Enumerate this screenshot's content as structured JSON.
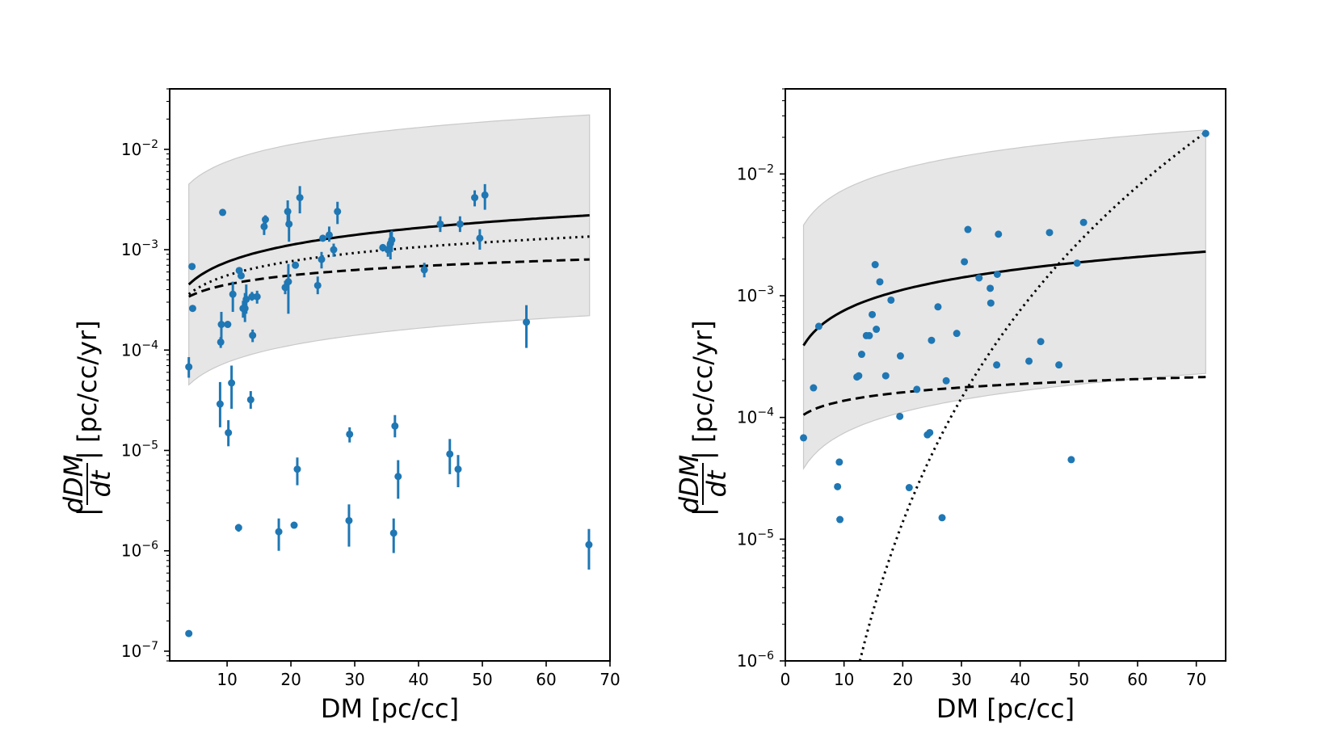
{
  "chart_data": [
    {
      "type": "scatter",
      "xlabel": "DM [pc/cc]",
      "ylabel": {
        "prefix": "|",
        "numerator": "dDM",
        "denominator": "dt",
        "suffix": "| [pc/cc/yr]"
      },
      "yscale": "log",
      "xlim": [
        1,
        70
      ],
      "ylim": [
        8e-08,
        0.04
      ],
      "xticks": [
        10,
        20,
        30,
        40,
        50,
        60,
        70
      ],
      "yticks": [
        {
          "value": 1e-07,
          "exp": "−7"
        },
        {
          "value": 1e-06,
          "exp": "−6"
        },
        {
          "value": 1e-05,
          "exp": "−5"
        },
        {
          "value": 0.0001,
          "exp": "−4"
        },
        {
          "value": 0.001,
          "exp": "−3"
        },
        {
          "value": 0.01,
          "exp": "−2"
        }
      ],
      "colors": {
        "points": "#1f77b4",
        "band_fill": "#e6e6e6",
        "band_edge": "#c9c9c9",
        "lines": "#000000"
      },
      "band": {
        "x": [
          4.0,
          66.8
        ],
        "lower": [
          4.5e-05,
          0.00022
        ],
        "upper": [
          0.0045,
          0.022
        ]
      },
      "curves": [
        {
          "style": "solid",
          "x": [
            4.0,
            66.8
          ],
          "y": [
            0.00045,
            0.0022
          ]
        },
        {
          "style": "dotted",
          "x": [
            4.0,
            66.8
          ],
          "y": [
            0.00036,
            0.00135
          ]
        },
        {
          "style": "dashed",
          "x": [
            4.0,
            66.8
          ],
          "y": [
            0.00034,
            0.0008
          ]
        }
      ],
      "points": [
        {
          "x": 4.0,
          "y": 6.8e-05,
          "lo": 5.3e-05,
          "hi": 8.5e-05
        },
        {
          "x": 4.0,
          "y": 1.5e-07
        },
        {
          "x": 4.5,
          "y": 0.00068
        },
        {
          "x": 4.6,
          "y": 0.00026
        },
        {
          "x": 8.9,
          "y": 2.9e-05,
          "lo": 1.7e-05,
          "hi": 4.8e-05
        },
        {
          "x": 9.0,
          "y": 0.00012,
          "lo": 0.000105,
          "hi": 0.000135
        },
        {
          "x": 9.1,
          "y": 0.00018,
          "lo": 0.00012,
          "hi": 0.00024
        },
        {
          "x": 9.3,
          "y": 0.00235
        },
        {
          "x": 10.1,
          "y": 0.00018
        },
        {
          "x": 10.2,
          "y": 1.5e-05,
          "lo": 1.1e-05,
          "hi": 2e-05
        },
        {
          "x": 10.7,
          "y": 4.7e-05,
          "lo": 2.6e-05,
          "hi": 7e-05
        },
        {
          "x": 10.9,
          "y": 0.00036,
          "lo": 0.00024,
          "hi": 0.00048
        },
        {
          "x": 11.8,
          "y": 1.7e-06,
          "lo": 1.55e-06,
          "hi": 1.85e-06
        },
        {
          "x": 11.9,
          "y": 0.00062,
          "lo": 0.00058,
          "hi": 0.00066
        },
        {
          "x": 12.2,
          "y": 0.00055
        },
        {
          "x": 12.5,
          "y": 0.00026,
          "lo": 0.00021,
          "hi": 0.00031
        },
        {
          "x": 12.8,
          "y": 0.00026,
          "lo": 0.00019,
          "hi": 0.00037
        },
        {
          "x": 13.0,
          "y": 0.00032,
          "lo": 0.00023,
          "hi": 0.00045
        },
        {
          "x": 13.7,
          "y": 3.2e-05,
          "lo": 2.6e-05,
          "hi": 3.9e-05
        },
        {
          "x": 13.9,
          "y": 0.00034,
          "lo": 0.00031,
          "hi": 0.00038
        },
        {
          "x": 14.0,
          "y": 0.00014,
          "lo": 0.00012,
          "hi": 0.00016
        },
        {
          "x": 14.7,
          "y": 0.00034,
          "lo": 0.00029,
          "hi": 0.00039
        },
        {
          "x": 15.8,
          "y": 0.0017,
          "lo": 0.0014,
          "hi": 0.002
        },
        {
          "x": 16.0,
          "y": 0.002,
          "lo": 0.0018,
          "hi": 0.0022
        },
        {
          "x": 18.1,
          "y": 1.55e-06,
          "lo": 1e-06,
          "hi": 2.1e-06
        },
        {
          "x": 19.1,
          "y": 0.00042,
          "lo": 0.00036,
          "hi": 0.00049
        },
        {
          "x": 19.5,
          "y": 0.0024,
          "lo": 0.0018,
          "hi": 0.0031
        },
        {
          "x": 19.6,
          "y": 0.00048,
          "lo": 0.00023,
          "hi": 0.00072
        },
        {
          "x": 19.7,
          "y": 0.0018,
          "lo": 0.0012,
          "hi": 0.0024
        },
        {
          "x": 20.5,
          "y": 1.8e-06,
          "lo": 1.7e-06,
          "hi": 1.9e-06
        },
        {
          "x": 20.7,
          "y": 0.0007,
          "lo": 0.00065,
          "hi": 0.00075
        },
        {
          "x": 21.0,
          "y": 6.5e-06,
          "lo": 4.5e-06,
          "hi": 8.5e-06
        },
        {
          "x": 21.4,
          "y": 0.0033,
          "lo": 0.0023,
          "hi": 0.0043
        },
        {
          "x": 24.2,
          "y": 0.00044,
          "lo": 0.00036,
          "hi": 0.00054
        },
        {
          "x": 24.8,
          "y": 0.0008,
          "lo": 0.00065,
          "hi": 0.00095
        },
        {
          "x": 25.0,
          "y": 0.0013
        },
        {
          "x": 26.0,
          "y": 0.0014,
          "lo": 0.0012,
          "hi": 0.0017
        },
        {
          "x": 26.7,
          "y": 0.001,
          "lo": 0.00085,
          "hi": 0.00115
        },
        {
          "x": 27.3,
          "y": 0.0024,
          "lo": 0.0018,
          "hi": 0.003
        },
        {
          "x": 29.1,
          "y": 2e-06,
          "lo": 1.1e-06,
          "hi": 2.9e-06
        },
        {
          "x": 29.2,
          "y": 1.45e-05,
          "lo": 1.2e-05,
          "hi": 1.7e-05
        },
        {
          "x": 34.4,
          "y": 0.00105
        },
        {
          "x": 35.2,
          "y": 0.001,
          "lo": 0.00085,
          "hi": 0.00115
        },
        {
          "x": 35.6,
          "y": 0.00115,
          "lo": 0.0008,
          "hi": 0.0015
        },
        {
          "x": 35.8,
          "y": 0.00125,
          "lo": 0.00095,
          "hi": 0.00155
        },
        {
          "x": 36.1,
          "y": 1.5e-06,
          "lo": 9.5e-07,
          "hi": 2.1e-06
        },
        {
          "x": 36.3,
          "y": 1.75e-05,
          "lo": 1.35e-05,
          "hi": 2.25e-05
        },
        {
          "x": 36.8,
          "y": 5.5e-06,
          "lo": 3.3e-06,
          "hi": 8e-06
        },
        {
          "x": 40.9,
          "y": 0.00063,
          "lo": 0.00053,
          "hi": 0.00074
        },
        {
          "x": 43.4,
          "y": 0.0018,
          "lo": 0.0015,
          "hi": 0.00215
        },
        {
          "x": 44.9,
          "y": 9.2e-06,
          "lo": 5.8e-06,
          "hi": 1.3e-05
        },
        {
          "x": 46.2,
          "y": 6.5e-06,
          "lo": 4.3e-06,
          "hi": 9e-06
        },
        {
          "x": 46.5,
          "y": 0.0018,
          "lo": 0.0015,
          "hi": 0.00215
        },
        {
          "x": 48.8,
          "y": 0.0033,
          "lo": 0.0027,
          "hi": 0.0039
        },
        {
          "x": 49.6,
          "y": 0.0013,
          "lo": 0.001,
          "hi": 0.0016
        },
        {
          "x": 50.4,
          "y": 0.0035,
          "lo": 0.0025,
          "hi": 0.0045
        },
        {
          "x": 56.9,
          "y": 0.00019,
          "lo": 0.000105,
          "hi": 0.00028
        },
        {
          "x": 66.7,
          "y": 1.15e-06,
          "lo": 6.5e-07,
          "hi": 1.65e-06
        }
      ]
    },
    {
      "type": "scatter",
      "xlabel": "DM [pc/cc]",
      "ylabel": {
        "prefix": "|",
        "numerator": "dDM",
        "denominator": "dt",
        "suffix": "| [pc/cc/yr]"
      },
      "yscale": "log",
      "xlim": [
        0,
        75
      ],
      "ylim": [
        1e-06,
        0.05
      ],
      "xticks": [
        0,
        10,
        20,
        30,
        40,
        50,
        60,
        70
      ],
      "yticks": [
        {
          "value": 1e-06,
          "exp": "−6"
        },
        {
          "value": 1e-05,
          "exp": "−5"
        },
        {
          "value": 0.0001,
          "exp": "−4"
        },
        {
          "value": 0.001,
          "exp": "−3"
        },
        {
          "value": 0.01,
          "exp": "−2"
        }
      ],
      "colors": {
        "points": "#1f77b4",
        "band_fill": "#e6e6e6",
        "band_edge": "#c9c9c9",
        "lines": "#000000"
      },
      "band": {
        "x": [
          3.1,
          71.6
        ],
        "lower": [
          3.8e-05,
          0.00023
        ],
        "upper": [
          0.0038,
          0.023
        ]
      },
      "curves": [
        {
          "style": "solid",
          "x": [
            3.1,
            71.6
          ],
          "y": [
            0.00039,
            0.0023
          ]
        },
        {
          "style": "dashed",
          "x": [
            3.1,
            71.6
          ],
          "y": [
            0.000105,
            0.000215
          ]
        },
        {
          "style": "dotted",
          "x": [
            12.7,
            71.6
          ],
          "y": [
            1e-06,
            0.022
          ]
        }
      ],
      "points": [
        {
          "x": 3.1,
          "y": 6.8e-05
        },
        {
          "x": 4.8,
          "y": 0.000175
        },
        {
          "x": 5.7,
          "y": 0.00056
        },
        {
          "x": 8.9,
          "y": 2.7e-05
        },
        {
          "x": 9.2,
          "y": 4.3e-05
        },
        {
          "x": 9.3,
          "y": 1.45e-05
        },
        {
          "x": 12.2,
          "y": 0.000215
        },
        {
          "x": 12.5,
          "y": 0.00022
        },
        {
          "x": 13.0,
          "y": 0.00033
        },
        {
          "x": 13.8,
          "y": 0.00047
        },
        {
          "x": 14.3,
          "y": 0.00047
        },
        {
          "x": 14.8,
          "y": 0.0007
        },
        {
          "x": 15.3,
          "y": 0.0018
        },
        {
          "x": 15.5,
          "y": 0.00053
        },
        {
          "x": 16.1,
          "y": 0.0013
        },
        {
          "x": 17.1,
          "y": 0.00022
        },
        {
          "x": 18.0,
          "y": 0.00092
        },
        {
          "x": 19.5,
          "y": 0.000102
        },
        {
          "x": 19.6,
          "y": 0.00032
        },
        {
          "x": 21.1,
          "y": 2.65e-05
        },
        {
          "x": 22.4,
          "y": 0.00017
        },
        {
          "x": 24.2,
          "y": 7.2e-05
        },
        {
          "x": 24.6,
          "y": 7.5e-05
        },
        {
          "x": 24.9,
          "y": 0.00043
        },
        {
          "x": 26.0,
          "y": 0.00081
        },
        {
          "x": 26.7,
          "y": 1.5e-05
        },
        {
          "x": 27.4,
          "y": 0.0002
        },
        {
          "x": 29.2,
          "y": 0.00049
        },
        {
          "x": 30.5,
          "y": 0.0019
        },
        {
          "x": 31.1,
          "y": 0.0035
        },
        {
          "x": 33.0,
          "y": 0.0014
        },
        {
          "x": 34.9,
          "y": 0.00115
        },
        {
          "x": 35.0,
          "y": 0.00087
        },
        {
          "x": 36.0,
          "y": 0.00027
        },
        {
          "x": 36.1,
          "y": 0.0015
        },
        {
          "x": 36.3,
          "y": 0.0032
        },
        {
          "x": 41.5,
          "y": 0.00029
        },
        {
          "x": 43.5,
          "y": 0.00042
        },
        {
          "x": 45.0,
          "y": 0.0033
        },
        {
          "x": 46.6,
          "y": 0.00027
        },
        {
          "x": 48.7,
          "y": 4.5e-05
        },
        {
          "x": 49.7,
          "y": 0.00185
        },
        {
          "x": 50.8,
          "y": 0.004
        },
        {
          "x": 71.6,
          "y": 0.0215
        }
      ]
    }
  ]
}
